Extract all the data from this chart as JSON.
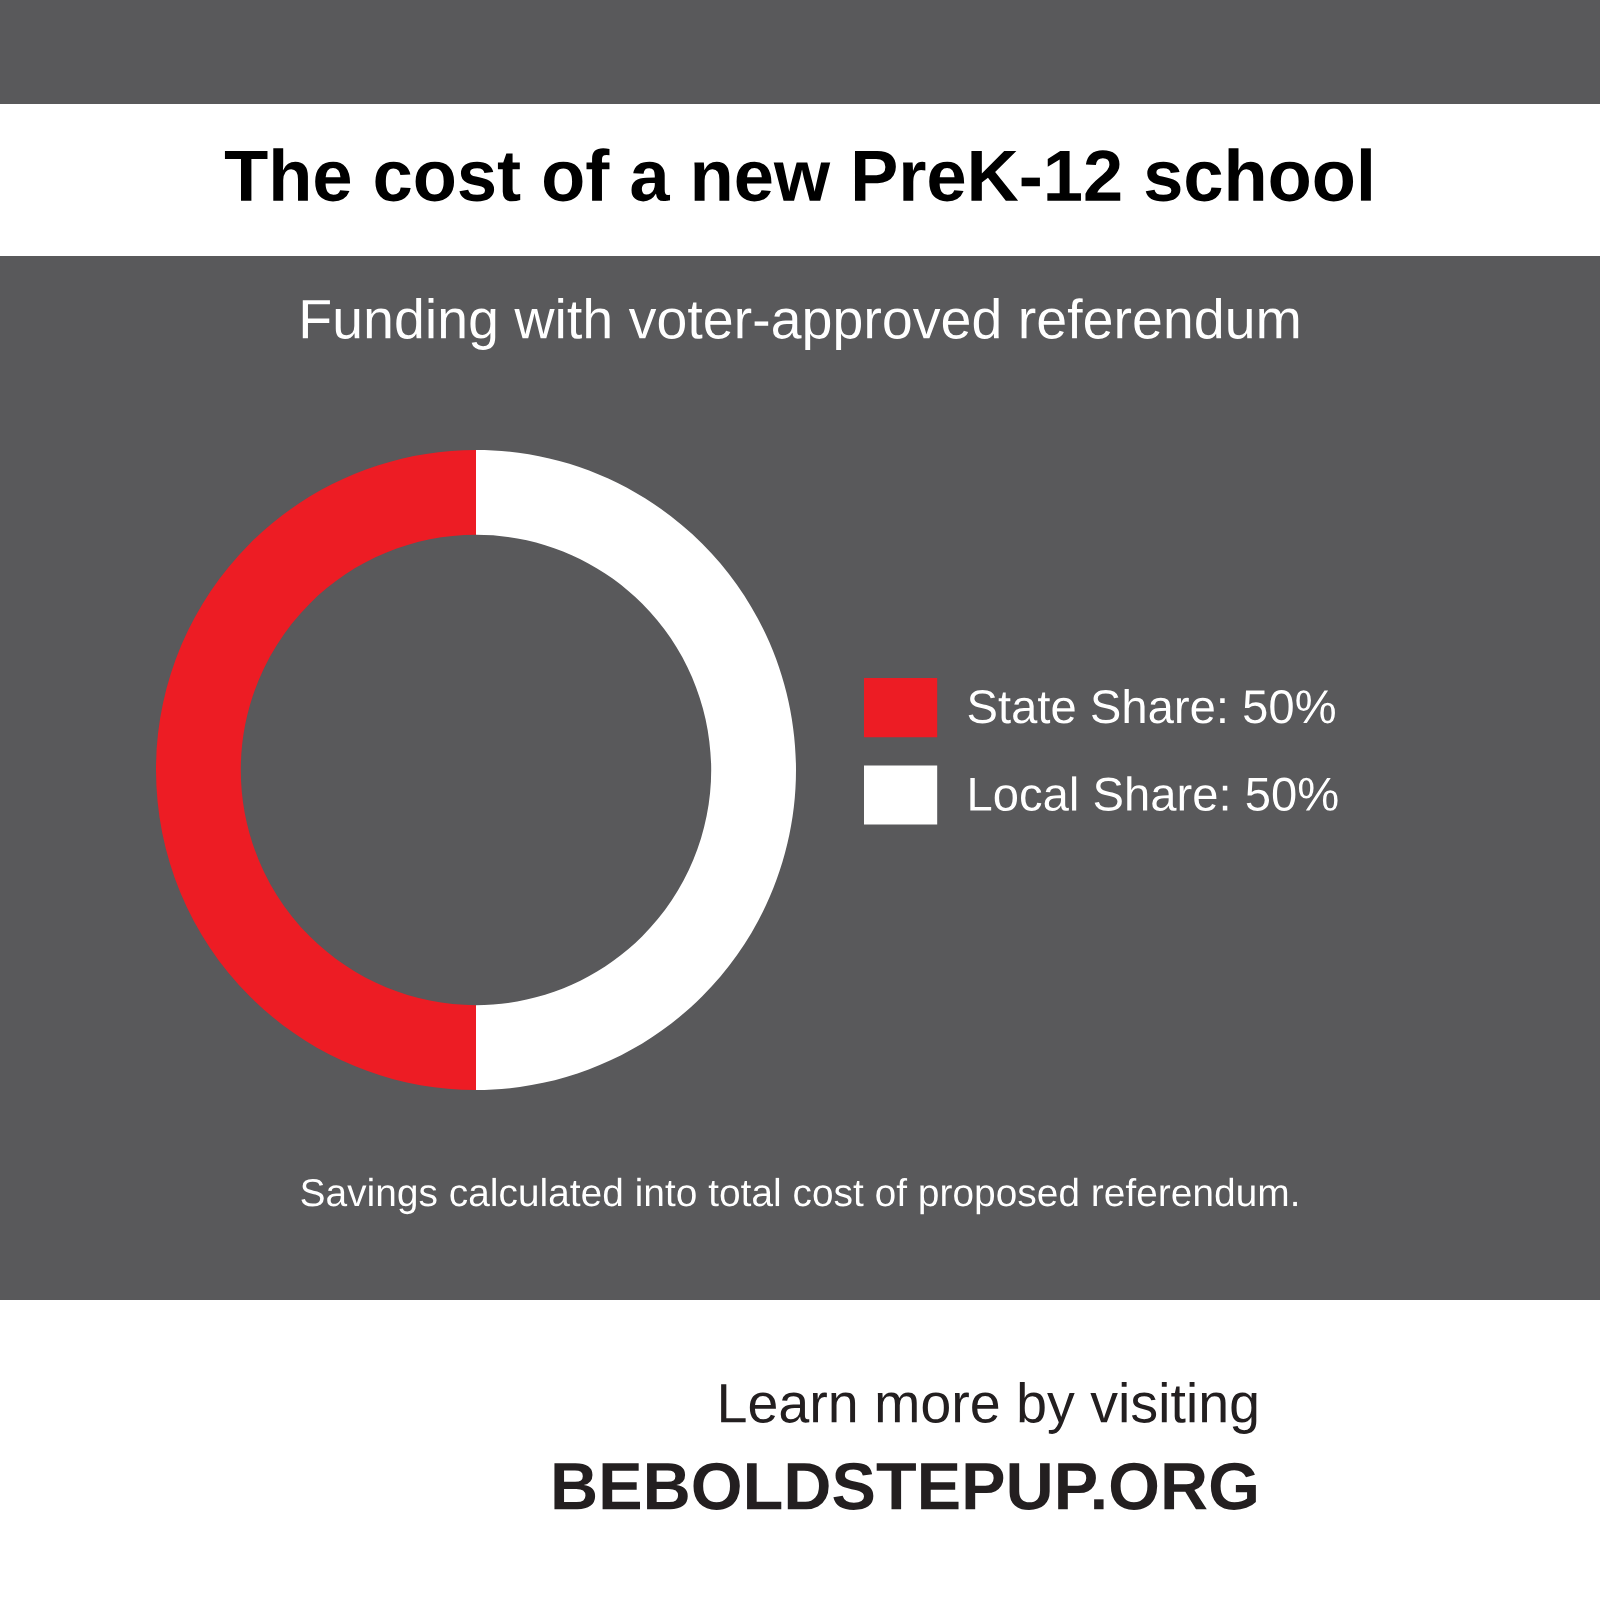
{
  "chart_data": {
    "type": "donut",
    "title": "The cost of a new PreK-12 school",
    "subtitle": "Funding with voter-approved referendum",
    "categories": [
      "State Share: 50%",
      "Local Share: 50%"
    ],
    "values": [
      50,
      50
    ],
    "colors": [
      "#ed1c24",
      "#ffffff"
    ],
    "legend": "right",
    "annotations": [
      "Savings calculated into total cost of proposed referendum.",
      "Learn more by visiting",
      "BEBOLDSTEPUP.ORG"
    ]
  }
}
